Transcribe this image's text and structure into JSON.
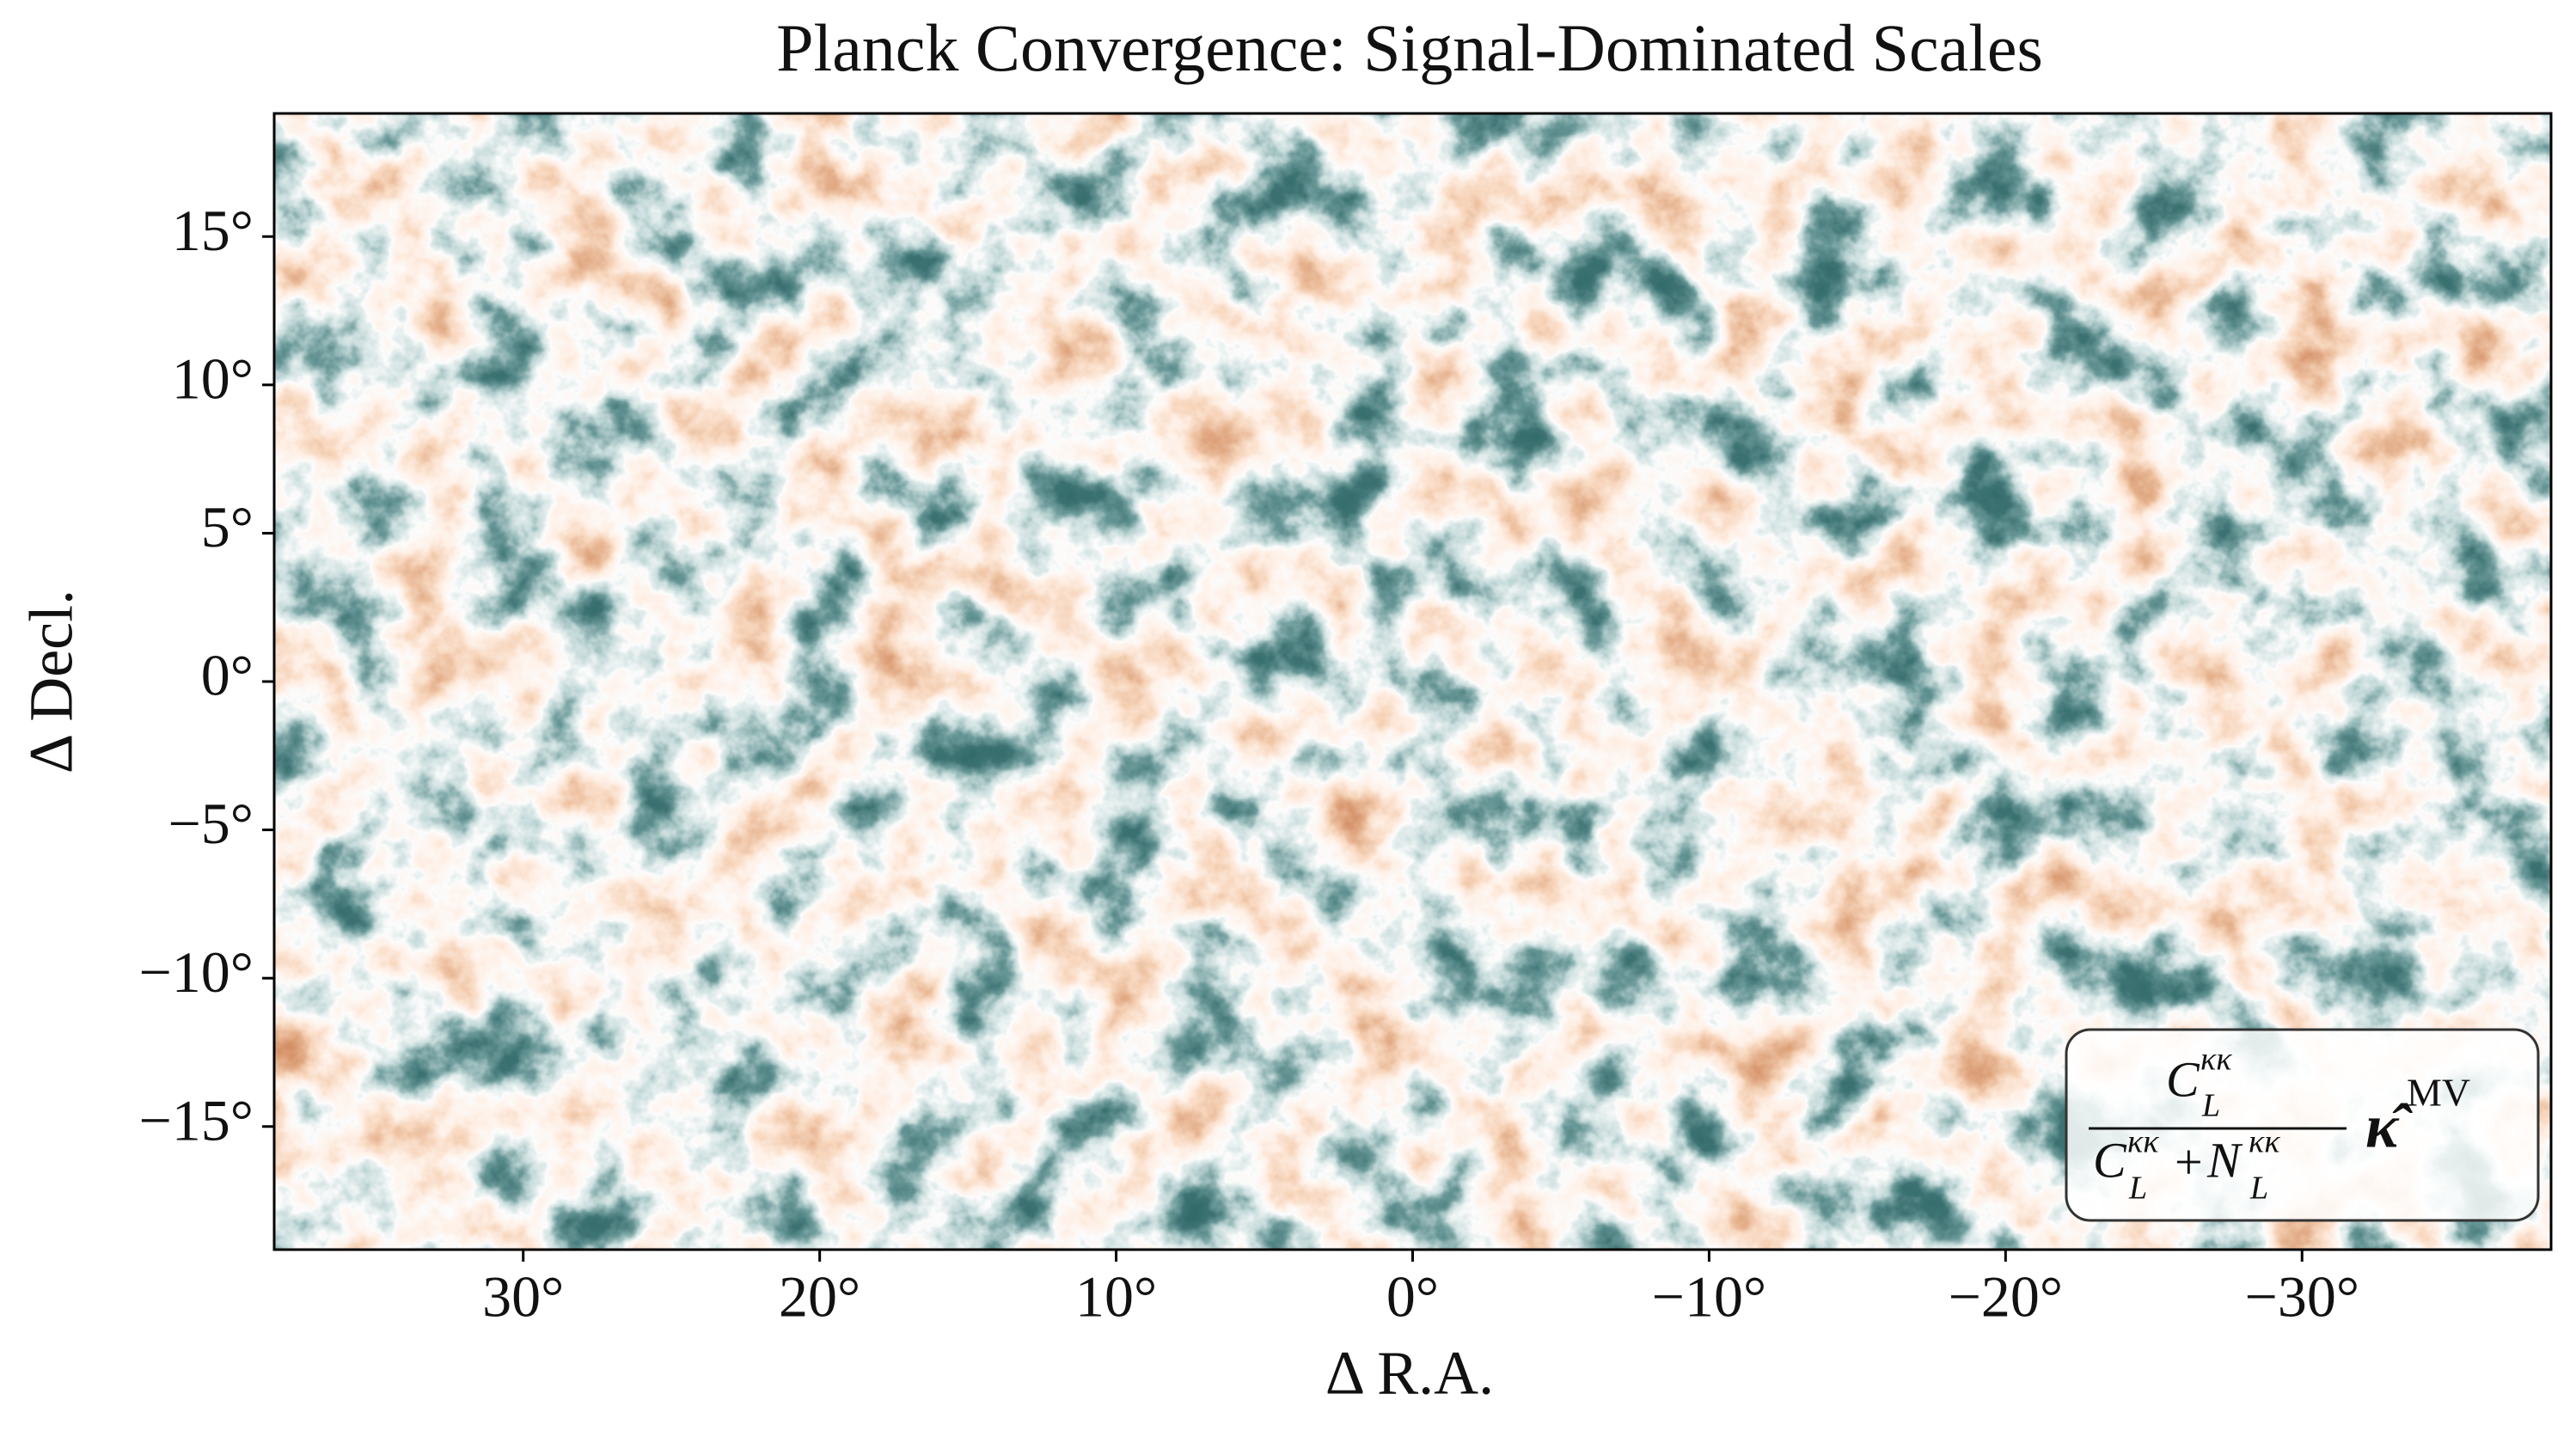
{
  "chart_data": {
    "type": "heatmap",
    "title": "Planck Convergence: Signal-Dominated Scales",
    "x_label": "Δ R.A.",
    "y_label": "Δ Decl.",
    "xlim": [
      38.4,
      -38.4
    ],
    "ylim": [
      -19.15,
      19.15
    ],
    "xticks": [
      {
        "value": 30,
        "label": "30°"
      },
      {
        "value": 20,
        "label": "20°"
      },
      {
        "value": 10,
        "label": "10°"
      },
      {
        "value": 0,
        "label": "0°"
      },
      {
        "value": -10,
        "label": "−10°"
      },
      {
        "value": -20,
        "label": "−20°"
      },
      {
        "value": -30,
        "label": "−30°"
      }
    ],
    "yticks": [
      {
        "value": 15,
        "label": "15°"
      },
      {
        "value": 10,
        "label": "10°"
      },
      {
        "value": 5,
        "label": "5°"
      },
      {
        "value": 0,
        "label": "0°"
      },
      {
        "value": -5,
        "label": "−5°"
      },
      {
        "value": -10,
        "label": "−10°"
      },
      {
        "value": -15,
        "label": "−15°"
      }
    ],
    "annotation": {
      "num_base": "C",
      "num_sup": "κκ",
      "num_sub": "L",
      "den1_base": "C",
      "den1_sup": "κκ",
      "den1_sub": "L",
      "plus": "+",
      "den2_base": "N",
      "den2_sup": "κκ",
      "den2_sub": "L",
      "symbol": "κ̂",
      "symbol_sup": "MV"
    }
  }
}
